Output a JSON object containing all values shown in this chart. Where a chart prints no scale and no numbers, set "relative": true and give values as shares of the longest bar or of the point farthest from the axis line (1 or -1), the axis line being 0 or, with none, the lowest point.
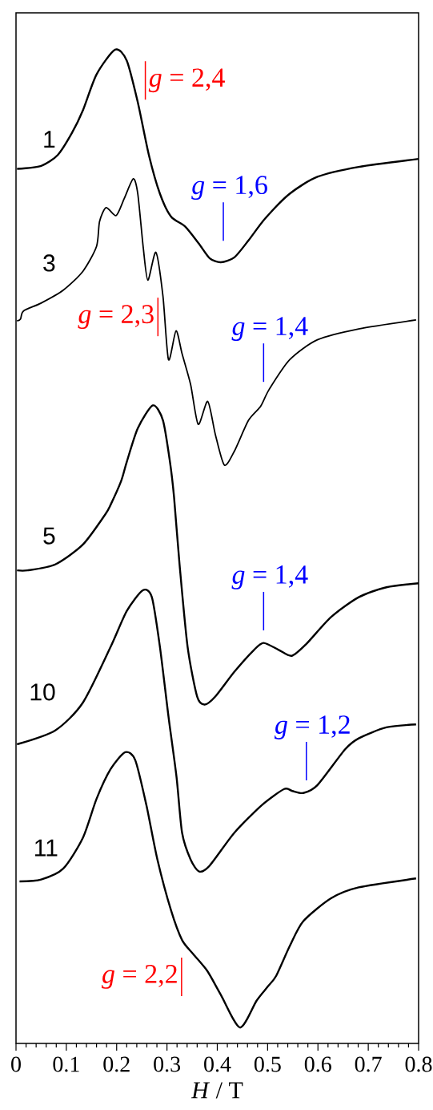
{
  "chart_data": {
    "type": "line",
    "relative": true,
    "xlabel": "*H* / T",
    "xlim": [
      0,
      0.8
    ],
    "xticks": [
      0,
      0.1,
      0.2,
      0.3,
      0.4,
      0.5,
      0.6,
      0.7,
      0.8
    ],
    "tick_labels": "x",
    "marker": "none",
    "line_style": "solid",
    "series": [
      {
        "name": "1",
        "color": "#000000",
        "x": [
          0.002,
          0.05,
          0.083,
          0.111,
          0.133,
          0.16,
          0.197,
          0.22,
          0.242,
          0.264,
          0.286,
          0.308,
          0.336,
          0.363,
          0.385,
          0.407,
          0.434,
          0.462,
          0.495,
          0.544,
          0.599,
          0.681,
          0.8
        ],
        "values": [
          0.88,
          0.883,
          0.894,
          0.916,
          0.939,
          0.975,
          1.0,
          0.989,
          0.947,
          0.894,
          0.855,
          0.832,
          0.822,
          0.805,
          0.79,
          0.786,
          0.791,
          0.808,
          0.83,
          0.855,
          0.872,
          0.882,
          0.89
        ]
      },
      {
        "name": "3",
        "color": "#000000",
        "x": [
          0.002,
          0.009,
          0.015,
          0.05,
          0.094,
          0.133,
          0.16,
          0.166,
          0.179,
          0.199,
          0.215,
          0.233,
          0.242,
          0.253,
          0.262,
          0.278,
          0.292,
          0.303,
          0.318,
          0.33,
          0.347,
          0.362,
          0.381,
          0.396,
          0.414,
          0.434,
          0.462,
          0.486,
          0.503,
          0.544,
          0.599,
          0.681,
          0.795
        ],
        "values": [
          0.727,
          0.729,
          0.737,
          0.745,
          0.758,
          0.777,
          0.802,
          0.827,
          0.841,
          0.833,
          0.85,
          0.87,
          0.855,
          0.8,
          0.768,
          0.796,
          0.752,
          0.688,
          0.717,
          0.694,
          0.663,
          0.623,
          0.646,
          0.613,
          0.582,
          0.596,
          0.627,
          0.641,
          0.658,
          0.688,
          0.708,
          0.719,
          0.728
        ]
      },
      {
        "name": "5",
        "color": "#000000",
        "x": [
          0.002,
          0.023,
          0.078,
          0.133,
          0.177,
          0.188,
          0.209,
          0.22,
          0.242,
          0.272,
          0.292,
          0.306,
          0.314,
          0.325,
          0.341,
          0.36,
          0.375,
          0.396,
          0.434,
          0.473,
          0.492,
          0.522,
          0.548,
          0.577,
          0.626,
          0.681,
          0.736,
          0.8
        ],
        "values": [
          0.476,
          0.476,
          0.482,
          0.502,
          0.532,
          0.542,
          0.566,
          0.585,
          0.619,
          0.642,
          0.627,
          0.585,
          0.55,
          0.482,
          0.399,
          0.349,
          0.341,
          0.349,
          0.374,
          0.396,
          0.403,
          0.396,
          0.39,
          0.402,
          0.429,
          0.449,
          0.459,
          0.463
        ]
      },
      {
        "name": "10",
        "color": "#000000",
        "x": [
          0.002,
          0.078,
          0.133,
          0.188,
          0.22,
          0.252,
          0.27,
          0.286,
          0.303,
          0.319,
          0.33,
          0.347,
          0.364,
          0.385,
          0.434,
          0.489,
          0.533,
          0.549,
          0.571,
          0.599,
          0.654,
          0.681,
          0.736,
          0.795
        ],
        "values": [
          0.301,
          0.315,
          0.343,
          0.399,
          0.435,
          0.456,
          0.449,
          0.399,
          0.329,
          0.268,
          0.212,
          0.185,
          0.173,
          0.179,
          0.212,
          0.24,
          0.256,
          0.254,
          0.252,
          0.26,
          0.296,
          0.307,
          0.318,
          0.321
        ]
      },
      {
        "name": "11",
        "color": "#000000",
        "x": [
          0.007,
          0.05,
          0.094,
          0.133,
          0.16,
          0.188,
          0.217,
          0.237,
          0.259,
          0.281,
          0.308,
          0.33,
          0.352,
          0.38,
          0.407,
          0.445,
          0.478,
          0.5,
          0.517,
          0.544,
          0.571,
          0.626,
          0.681,
          0.795
        ],
        "values": [
          0.163,
          0.165,
          0.176,
          0.207,
          0.246,
          0.276,
          0.293,
          0.285,
          0.24,
          0.185,
          0.134,
          0.104,
          0.09,
          0.073,
          0.049,
          0.016,
          0.043,
          0.057,
          0.068,
          0.098,
          0.123,
          0.146,
          0.157,
          0.166
        ]
      }
    ],
    "annotations": [
      "*g* = 2,4",
      "*g* = 1,6",
      "*g* = 2,3",
      "*g* = 1,4",
      "*g* = 1,4",
      "*g* = 1,2",
      "*g* = 2,2"
    ]
  }
}
